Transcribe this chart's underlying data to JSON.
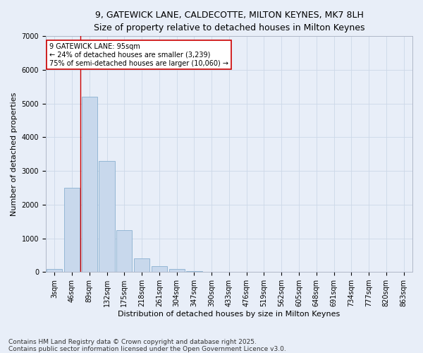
{
  "title_line1": "9, GATEWICK LANE, CALDECOTTE, MILTON KEYNES, MK7 8LH",
  "title_line2": "Size of property relative to detached houses in Milton Keynes",
  "xlabel": "Distribution of detached houses by size in Milton Keynes",
  "ylabel": "Number of detached properties",
  "categories": [
    "3sqm",
    "46sqm",
    "89sqm",
    "132sqm",
    "175sqm",
    "218sqm",
    "261sqm",
    "304sqm",
    "347sqm",
    "390sqm",
    "433sqm",
    "476sqm",
    "519sqm",
    "562sqm",
    "605sqm",
    "648sqm",
    "691sqm",
    "734sqm",
    "777sqm",
    "820sqm",
    "863sqm"
  ],
  "values": [
    80,
    2500,
    5200,
    3300,
    1250,
    400,
    170,
    80,
    20,
    5,
    2,
    1,
    0,
    0,
    0,
    0,
    0,
    0,
    0,
    0,
    0
  ],
  "bar_color": "#c8d8ec",
  "bar_edge_color": "#8ab0d0",
  "vline_color": "#cc0000",
  "annotation_text": "9 GATEWICK LANE: 95sqm\n← 24% of detached houses are smaller (3,239)\n75% of semi-detached houses are larger (10,060) →",
  "annotation_box_facecolor": "#ffffff",
  "annotation_box_edgecolor": "#cc0000",
  "ylim": [
    0,
    7000
  ],
  "yticks": [
    0,
    1000,
    2000,
    3000,
    4000,
    5000,
    6000,
    7000
  ],
  "grid_color": "#ccd8e8",
  "background_color": "#e8eef8",
  "footer_line1": "Contains HM Land Registry data © Crown copyright and database right 2025.",
  "footer_line2": "Contains public sector information licensed under the Open Government Licence v3.0.",
  "title_fontsize": 9,
  "subtitle_fontsize": 8.5,
  "axis_label_fontsize": 8,
  "tick_fontsize": 7,
  "annotation_fontsize": 7,
  "footer_fontsize": 6.5
}
